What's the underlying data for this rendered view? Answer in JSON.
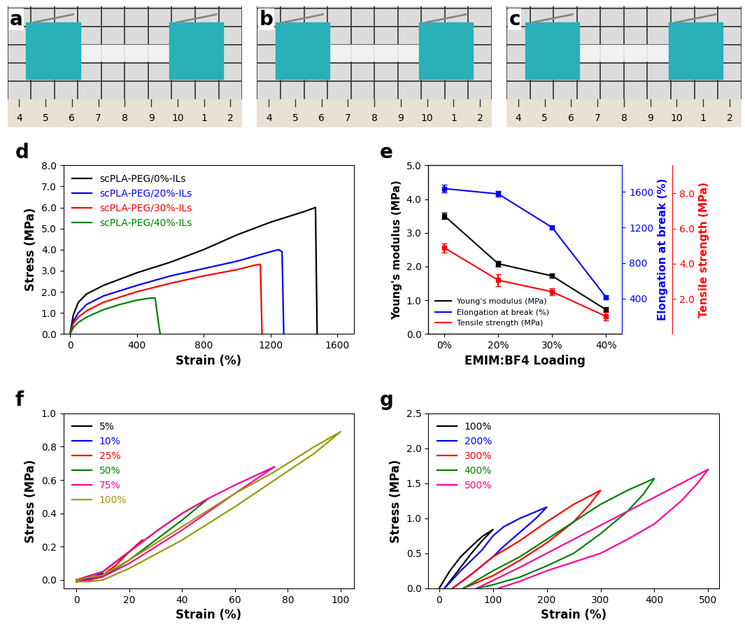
{
  "photos": {
    "panels": [
      "a",
      "b",
      "c"
    ],
    "ruler_labels": [
      "4",
      "5",
      "6",
      "7",
      "8",
      "9",
      "10",
      "1",
      "2"
    ]
  },
  "chart_data": [
    {
      "panel": "d",
      "type": "line",
      "x_label": "Strain (%)",
      "y_label": "Stress (MPa)",
      "xlim": [
        -40,
        1700
      ],
      "xticks": [
        0,
        400,
        800,
        1200,
        1600
      ],
      "ylim": [
        0,
        8
      ],
      "yticks": [
        {
          "value": 0,
          "label": "0.0"
        },
        {
          "value": 1,
          "label": "1.0"
        },
        {
          "value": 2,
          "label": "2.0"
        },
        {
          "value": 3,
          "label": "3.0"
        },
        {
          "value": 4,
          "label": "4.0"
        },
        {
          "value": 5,
          "label": "5.0"
        },
        {
          "value": 6,
          "label": "6.0"
        },
        {
          "value": 7,
          "label": "7.0"
        },
        {
          "value": 8,
          "label": "8.0"
        }
      ],
      "legend": "upper left",
      "series": [
        {
          "name": "scPLA-PEG/0%-ILs",
          "color": "#000000",
          "x": [
            0,
            20,
            50,
            100,
            200,
            300,
            400,
            600,
            800,
            1000,
            1200,
            1400,
            1470,
            1480
          ],
          "values": [
            0,
            0.9,
            1.5,
            1.9,
            2.3,
            2.6,
            2.9,
            3.4,
            4.0,
            4.7,
            5.3,
            5.8,
            6.0,
            0
          ]
        },
        {
          "name": "scPLA-PEG/20%-ILs",
          "color": "#0000ff",
          "x": [
            0,
            20,
            50,
            100,
            200,
            400,
            600,
            800,
            1000,
            1200,
            1250,
            1270,
            1280
          ],
          "values": [
            0,
            0.6,
            1.0,
            1.4,
            1.8,
            2.3,
            2.75,
            3.1,
            3.45,
            3.9,
            4.0,
            3.9,
            0
          ]
        },
        {
          "name": "scPLA-PEG/30%-ILs",
          "color": "#ff0000",
          "x": [
            0,
            20,
            50,
            100,
            200,
            400,
            600,
            800,
            1000,
            1100,
            1140,
            1150
          ],
          "values": [
            0,
            0.5,
            0.8,
            1.1,
            1.5,
            2.0,
            2.4,
            2.75,
            3.05,
            3.25,
            3.3,
            0
          ]
        },
        {
          "name": "scPLA-PEG/40%-ILs",
          "color": "#008000",
          "x": [
            0,
            20,
            50,
            100,
            200,
            300,
            400,
            480,
            510,
            530,
            540
          ],
          "values": [
            0,
            0.3,
            0.55,
            0.8,
            1.15,
            1.4,
            1.6,
            1.7,
            1.7,
            0.5,
            0
          ]
        }
      ]
    },
    {
      "panel": "e",
      "type": "line",
      "x_label": "EMIM:BF4 Loading",
      "categories": [
        "0%",
        "20%",
        "30%",
        "40%"
      ],
      "y_label": "Young's modulus (MPa)",
      "y2_label": "Elongation at break (%)",
      "y3_label": "Tensile strength (MPa)",
      "ylim": [
        0,
        5
      ],
      "yticks": [
        {
          "value": 0,
          "label": "0.0"
        },
        {
          "value": 1,
          "label": "1.0"
        },
        {
          "value": 2,
          "label": "2.0"
        },
        {
          "value": 3,
          "label": "3.0"
        },
        {
          "value": 4,
          "label": "4.0"
        },
        {
          "value": 5,
          "label": "5.0"
        }
      ],
      "y2lim": [
        0,
        1900
      ],
      "y2ticks": [
        400,
        800,
        1200,
        1600
      ],
      "y3lim": [
        0,
        9.6
      ],
      "y3ticks": [
        {
          "value": 2,
          "label": "2.0"
        },
        {
          "value": 4,
          "label": "4.0"
        },
        {
          "value": 6,
          "label": "6.0"
        },
        {
          "value": 8,
          "label": "8.0"
        }
      ],
      "legend": "lower left",
      "marker": "s",
      "series": [
        {
          "name": "Young's modulus (MPa)",
          "color": "#000000",
          "axis": "y",
          "values": [
            3.5,
            2.08,
            1.72,
            0.72
          ],
          "errors": [
            0.1,
            0.08,
            0.06,
            0.08
          ]
        },
        {
          "name": "Elongation at break (%)",
          "color": "#0000ff",
          "axis": "y2",
          "values": [
            1638,
            1578,
            1200,
            415
          ],
          "errors": [
            40,
            30,
            20,
            20
          ]
        },
        {
          "name": "Tensile strength (MPa)",
          "color": "#ff0000",
          "axis": "y3",
          "values": [
            4.9,
            3.06,
            2.4,
            1.0
          ],
          "errors": [
            0.25,
            0.35,
            0.2,
            0.25
          ]
        }
      ]
    },
    {
      "panel": "f",
      "type": "line",
      "x_label": "Strain (%)",
      "y_label": "Stress (MPa)",
      "xlim": [
        -5,
        105
      ],
      "xticks": [
        0,
        20,
        40,
        60,
        80,
        100
      ],
      "ylim": [
        -0.05,
        1.0
      ],
      "yticks": [
        {
          "value": 0,
          "label": "0.0"
        },
        {
          "value": 0.2,
          "label": "0.2"
        },
        {
          "value": 0.4,
          "label": "0.4"
        },
        {
          "value": 0.6,
          "label": "0.6"
        },
        {
          "value": 0.8,
          "label": "0.8"
        },
        {
          "value": 1.0,
          "label": "1.0"
        }
      ],
      "legend": "upper left",
      "series": [
        {
          "name": "5%",
          "color": "#000000",
          "x": [
            0,
            5,
            2,
            0
          ],
          "values": [
            0,
            0.01,
            0,
            0
          ]
        },
        {
          "name": "10%",
          "color": "#0000ff",
          "x": [
            0,
            5,
            10,
            7,
            3,
            0
          ],
          "values": [
            0,
            0.01,
            0.04,
            0.02,
            0,
            -0.01
          ]
        },
        {
          "name": "25%",
          "color": "#ff0000",
          "x": [
            0,
            10,
            20,
            25,
            20,
            15,
            10,
            5,
            0
          ],
          "values": [
            0,
            0.05,
            0.17,
            0.24,
            0.17,
            0.09,
            0.03,
            0,
            -0.01
          ]
        },
        {
          "name": "50%",
          "color": "#008000",
          "x": [
            0,
            10,
            20,
            30,
            40,
            50,
            40,
            30,
            20,
            10,
            5,
            0
          ],
          "values": [
            0,
            0.05,
            0.17,
            0.29,
            0.4,
            0.49,
            0.36,
            0.24,
            0.12,
            0.02,
            0,
            -0.01
          ]
        },
        {
          "name": "75%",
          "color": "#ff0099",
          "x": [
            0,
            10,
            20,
            30,
            40,
            50,
            60,
            75,
            60,
            50,
            40,
            30,
            20,
            10,
            5,
            0
          ],
          "values": [
            0,
            0.05,
            0.17,
            0.29,
            0.4,
            0.49,
            0.57,
            0.68,
            0.52,
            0.41,
            0.3,
            0.2,
            0.1,
            0.02,
            0,
            -0.01
          ]
        },
        {
          "name": "100%",
          "color": "#999900",
          "x": [
            0,
            10,
            20,
            30,
            40,
            50,
            60,
            75,
            90,
            100,
            90,
            75,
            60,
            40,
            20,
            10,
            5,
            0
          ],
          "values": [
            0,
            0.03,
            0.12,
            0.22,
            0.32,
            0.42,
            0.52,
            0.65,
            0.8,
            0.89,
            0.76,
            0.6,
            0.44,
            0.24,
            0.07,
            0.0,
            -0.01,
            -0.01
          ]
        }
      ]
    },
    {
      "panel": "g",
      "type": "line",
      "x_label": "Strain (%)",
      "y_label": "Stress (MPa)",
      "xlim": [
        -20,
        520
      ],
      "xticks": [
        0,
        100,
        200,
        300,
        400,
        500
      ],
      "ylim": [
        0,
        2.5
      ],
      "yticks": [
        {
          "value": 0,
          "label": "0.0"
        },
        {
          "value": 0.5,
          "label": "0.5"
        },
        {
          "value": 1.0,
          "label": "1.0"
        },
        {
          "value": 1.5,
          "label": "1.5"
        },
        {
          "value": 2.0,
          "label": "2.0"
        },
        {
          "value": 2.5,
          "label": "2.5"
        }
      ],
      "legend": "upper left",
      "series": [
        {
          "name": "100%",
          "color": "#000000",
          "x": [
            0,
            20,
            40,
            60,
            80,
            100,
            80,
            60,
            40,
            20,
            10
          ],
          "values": [
            0,
            0.25,
            0.45,
            0.6,
            0.74,
            0.84,
            0.68,
            0.5,
            0.3,
            0.1,
            0
          ]
        },
        {
          "name": "200%",
          "color": "#0000ff",
          "x": [
            10,
            40,
            80,
            100,
            120,
            150,
            200,
            180,
            150,
            120,
            100,
            60,
            25
          ],
          "values": [
            0,
            0.25,
            0.55,
            0.75,
            0.88,
            1.0,
            1.16,
            1.0,
            0.8,
            0.6,
            0.45,
            0.2,
            0
          ]
        },
        {
          "name": "300%",
          "color": "#ff0000",
          "x": [
            25,
            60,
            100,
            150,
            200,
            250,
            300,
            280,
            250,
            200,
            150,
            100,
            45
          ],
          "values": [
            0,
            0.2,
            0.45,
            0.68,
            0.95,
            1.2,
            1.4,
            1.2,
            0.95,
            0.65,
            0.4,
            0.18,
            0
          ]
        },
        {
          "name": "400%",
          "color": "#008000",
          "x": [
            45,
            100,
            150,
            200,
            300,
            350,
            400,
            380,
            350,
            300,
            250,
            200,
            150,
            100,
            70
          ],
          "values": [
            0,
            0.25,
            0.45,
            0.7,
            1.2,
            1.4,
            1.57,
            1.35,
            1.1,
            0.78,
            0.5,
            0.32,
            0.16,
            0.05,
            0
          ]
        },
        {
          "name": "500%",
          "color": "#ff0099",
          "x": [
            70,
            150,
            200,
            300,
            400,
            450,
            500,
            480,
            450,
            400,
            350,
            300,
            200,
            150,
            110
          ],
          "values": [
            0,
            0.3,
            0.5,
            0.9,
            1.3,
            1.5,
            1.7,
            1.5,
            1.25,
            0.92,
            0.7,
            0.5,
            0.25,
            0.1,
            0
          ]
        }
      ]
    }
  ]
}
